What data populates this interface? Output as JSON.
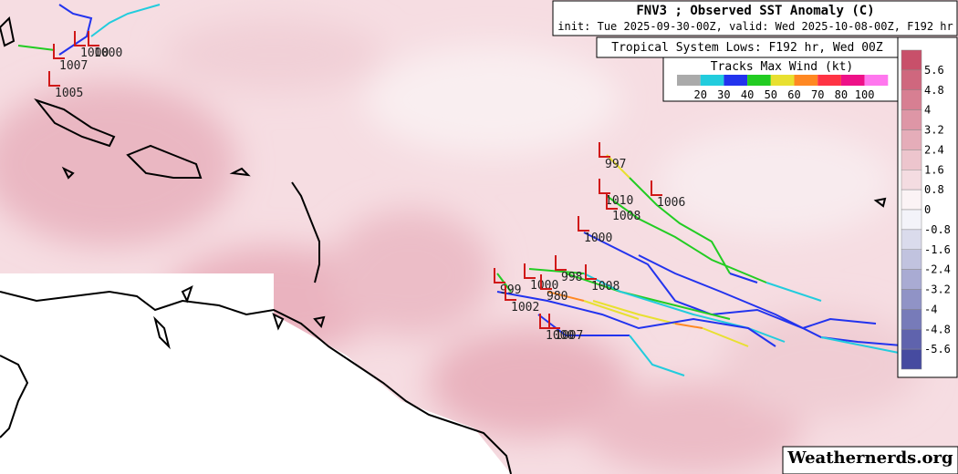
{
  "header": {
    "title": "FNV3 ; Observed SST Anomaly (C)",
    "subtitle": "init: Tue 2025-09-30-00Z, valid: Wed 2025-10-08-00Z, F192 hr"
  },
  "lows_box": {
    "title": "Tropical System Lows: F192 hr, Wed 00Z"
  },
  "wind_legend": {
    "title": "Tracks Max Wind (kt)",
    "labels": [
      "20",
      "30",
      "40",
      "50",
      "60",
      "70",
      "80",
      "100"
    ]
  },
  "colorbar": {
    "labels": [
      "5.6",
      "4.8",
      "4",
      "3.2",
      "2.4",
      "1.6",
      "0.8",
      "0",
      "-0.8",
      "-1.6",
      "-2.4",
      "-3.2",
      "-4",
      "-4.8",
      "-5.6"
    ]
  },
  "lows": [
    "997",
    "1010",
    "1006",
    "1008",
    "1000",
    "998",
    "1008",
    "999",
    "1000",
    "980",
    "1002",
    "1000",
    "1007",
    "1000",
    "1000",
    "1007",
    "1005"
  ],
  "watermark": "Weathernerds.org"
}
